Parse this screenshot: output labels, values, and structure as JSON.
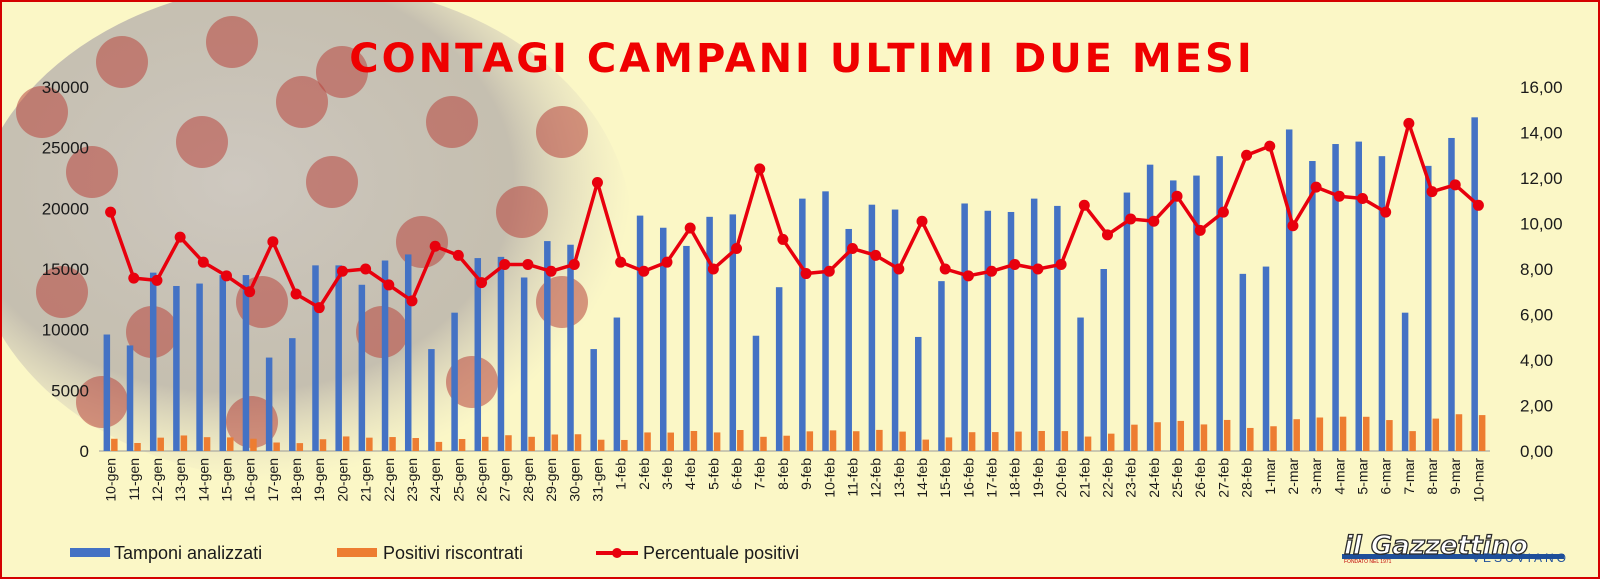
{
  "chart_data": {
    "type": "bar",
    "title": "CONTAGI CAMPANI ULTIMI DUE MESI",
    "categories": [
      "10-gen",
      "11-gen",
      "12-gen",
      "13-gen",
      "14-gen",
      "15-gen",
      "16-gen",
      "17-gen",
      "18-gen",
      "19-gen",
      "20-gen",
      "21-gen",
      "22-gen",
      "23-gen",
      "24-gen",
      "25-gen",
      "26-gen",
      "27-gen",
      "28-gen",
      "29-gen",
      "30-gen",
      "31-gen",
      "1-feb",
      "2-feb",
      "3-feb",
      "4-feb",
      "5-feb",
      "6-feb",
      "7-feb",
      "8-feb",
      "9-feb",
      "10-feb",
      "11-feb",
      "12-feb",
      "13-feb",
      "14-feb",
      "15-feb",
      "16-feb",
      "17-feb",
      "18-feb",
      "19-feb",
      "20-feb",
      "21-feb",
      "22-feb",
      "23-feb",
      "24-feb",
      "25-feb",
      "26-feb",
      "27-feb",
      "28-feb",
      "1-mar",
      "2-mar",
      "3-mar",
      "4-mar",
      "5-mar",
      "6-mar",
      "7-mar",
      "8-mar",
      "9-mar",
      "10-mar"
    ],
    "series": [
      {
        "name": "Tamponi analizzati",
        "axis": "left",
        "kind": "bar",
        "color": "#4472c4",
        "values": [
          9600,
          8700,
          14700,
          13600,
          13800,
          14500,
          14500,
          7700,
          9300,
          15300,
          15300,
          13700,
          15700,
          16200,
          8400,
          11400,
          15900,
          16000,
          14300,
          17300,
          17000,
          8400,
          11000,
          19400,
          18400,
          16900,
          19300,
          19500,
          9500,
          13500,
          20800,
          21400,
          18300,
          20300,
          19900,
          9400,
          14000,
          20400,
          19800,
          19700,
          20800,
          20200,
          11000,
          15000,
          21300,
          23600,
          22300,
          22700,
          24300,
          14600,
          15200,
          26500,
          23900,
          25300,
          25500,
          24300,
          11400,
          23500,
          25800,
          27500
        ]
      },
      {
        "name": "Positivi riscontrati",
        "axis": "left",
        "kind": "bar",
        "color": "#ed7d31",
        "values": [
          1010,
          660,
          1100,
          1280,
          1140,
          1120,
          1010,
          700,
          650,
          970,
          1200,
          1100,
          1150,
          1070,
          750,
          990,
          1170,
          1300,
          1170,
          1360,
          1380,
          930,
          910,
          1530,
          1520,
          1650,
          1530,
          1730,
          1170,
          1260,
          1620,
          1700,
          1630,
          1740,
          1600,
          940,
          1120,
          1550,
          1560,
          1600,
          1650,
          1640,
          1190,
          1430,
          2170,
          2370,
          2480,
          2190,
          2560,
          1900,
          2040,
          2620,
          2760,
          2830,
          2820,
          2550,
          1640,
          2670,
          3030,
          2960
        ]
      },
      {
        "name": "Percentuale positivi",
        "axis": "right",
        "kind": "line",
        "color": "#e8000d",
        "values": [
          10.5,
          7.6,
          7.5,
          9.4,
          8.3,
          7.7,
          7.0,
          9.2,
          6.9,
          6.3,
          7.9,
          8.0,
          7.3,
          6.6,
          9.0,
          8.6,
          7.4,
          8.2,
          8.2,
          7.9,
          8.2,
          11.8,
          8.3,
          7.9,
          8.3,
          9.8,
          8.0,
          8.9,
          12.4,
          9.3,
          7.8,
          7.9,
          8.9,
          8.6,
          8.0,
          10.1,
          8.0,
          7.7,
          7.9,
          8.2,
          8.0,
          8.2,
          10.8,
          9.5,
          10.2,
          10.1,
          11.2,
          9.7,
          10.5,
          13.0,
          13.4,
          9.9,
          11.6,
          11.2,
          11.1,
          10.5,
          14.4,
          11.4,
          11.7,
          10.8
        ]
      }
    ],
    "left_axis": {
      "ylim": [
        0,
        30000
      ],
      "ticks": [
        "0",
        "5000",
        "10000",
        "15000",
        "20000",
        "25000",
        "30000"
      ]
    },
    "right_axis": {
      "ylim": [
        0,
        16
      ],
      "ticks": [
        "0,00",
        "2,00",
        "4,00",
        "6,00",
        "8,00",
        "10,00",
        "12,00",
        "14,00",
        "16,00"
      ]
    },
    "legend_position": "bottom-left",
    "grid": false
  },
  "legend": {
    "tamponi": "Tamponi analizzati",
    "positivi": "Positivi riscontrati",
    "percentuale": "Percentuale positivi"
  },
  "brand": {
    "name": "il Gazzettino",
    "tagline": "VESUVIANO",
    "founded": "FONDATO NEL 1971"
  },
  "colors": {
    "background": "#fbf7c6",
    "frame": "#d40000",
    "title": "#ef0000"
  }
}
